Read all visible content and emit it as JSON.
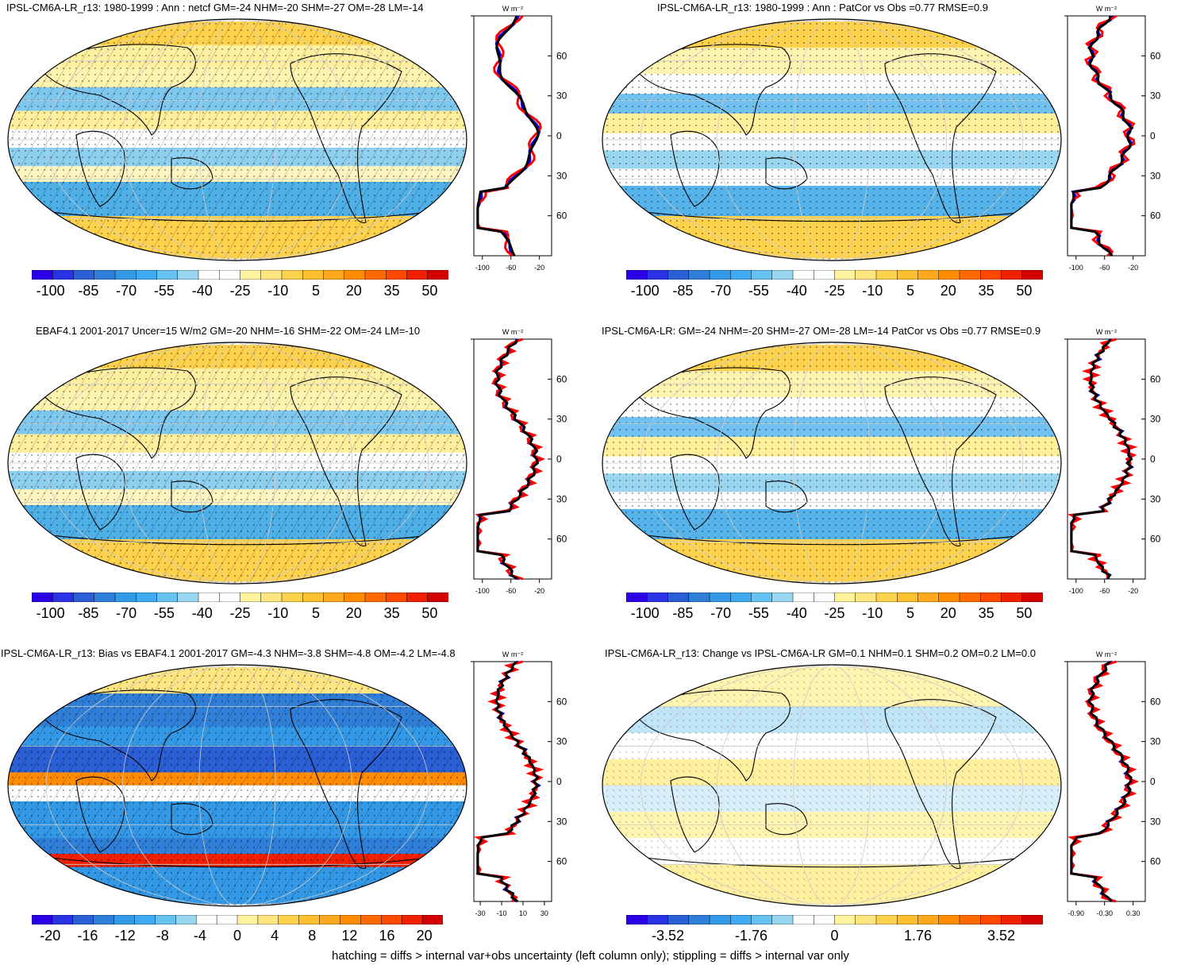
{
  "footnote": "hatching = diffs > internal var+obs uncertainty (left column only); stippling = diffs > internal var only",
  "zonal_unit": "W m⁻²",
  "lat_ticks": [
    "60N",
    "30N",
    "0",
    "30S",
    "60S"
  ],
  "colors": {
    "scale_main": [
      "#2b00e6",
      "#2a32e6",
      "#2a5fd6",
      "#2f7fd9",
      "#3399e6",
      "#40aaf0",
      "#66c2f0",
      "#99d6f0",
      "#ffffff",
      "#ffffff",
      "#fff3a0",
      "#ffe680",
      "#ffd24d",
      "#ffc030",
      "#ffaa1e",
      "#ff8c00",
      "#ff6a00",
      "#ff4800",
      "#f02000",
      "#d40000"
    ],
    "model": "#000000",
    "obs": "#ff0000",
    "ref": "#0000ff"
  },
  "panels": [
    {
      "id": "model-netcf",
      "title": "IPSL-CM6A-LR_r13: 1980-1999 : Ann : netcf GM=-24 NHM=-20 SHM=-27 OM=-28 LM=-14",
      "cbar_labels": [
        "-100",
        "-85",
        "-70",
        "-55",
        "-40",
        "-25",
        "-10",
        "5",
        "20",
        "35",
        "50"
      ],
      "zonal_ticks": [
        "-100",
        "-60",
        "-20"
      ],
      "map_style": "A",
      "hatch": true
    },
    {
      "id": "model-patcor",
      "title": "IPSL-CM6A-LR_r13: 1980-1999 : Ann : PatCor vs Obs =0.77 RMSE=0.9",
      "cbar_labels": [
        "-100",
        "-85",
        "-70",
        "-55",
        "-40",
        "-25",
        "-10",
        "5",
        "20",
        "35",
        "50"
      ],
      "zonal_ticks": [
        "-100",
        "-60",
        "-20"
      ],
      "map_style": "B",
      "hatch": false
    },
    {
      "id": "obs-ebaf",
      "title": "EBAF4.1 2001-2017 Uncer=15 W/m2 GM=-20 NHM=-16 SHM=-22 OM=-24 LM=-10",
      "cbar_labels": [
        "-100",
        "-85",
        "-70",
        "-55",
        "-40",
        "-25",
        "-10",
        "5",
        "20",
        "35",
        "50"
      ],
      "zonal_ticks": [
        "-100",
        "-60",
        "-20"
      ],
      "map_style": "A",
      "hatch": true
    },
    {
      "id": "ref-model",
      "title": "IPSL-CM6A-LR: GM=-24 NHM=-20 SHM=-27 OM=-28 LM=-14 PatCor vs Obs =0.77 RMSE=0.9",
      "cbar_labels": [
        "-100",
        "-85",
        "-70",
        "-55",
        "-40",
        "-25",
        "-10",
        "5",
        "20",
        "35",
        "50"
      ],
      "zonal_ticks": [
        "-100",
        "-60",
        "-20"
      ],
      "map_style": "B",
      "hatch": false
    },
    {
      "id": "bias",
      "title": "IPSL-CM6A-LR_r13: Bias vs EBAF4.1 2001-2017 GM=-4.3 NHM=-3.8 SHM=-4.8 OM=-4.2 LM=-4.8",
      "cbar_labels": [
        "-20",
        "-16",
        "-12",
        "-8",
        "-4",
        "0",
        "4",
        "8",
        "12",
        "16",
        "20"
      ],
      "zonal_ticks": [
        "-30",
        "-10",
        "10",
        "30"
      ],
      "map_style": "C",
      "hatch": true
    },
    {
      "id": "change",
      "title": "IPSL-CM6A-LR_r13: Change vs IPSL-CM6A-LR GM=0.1 NHM=0.1 SHM=0.2 OM=0.2 LM=0.0",
      "cbar_labels": [
        "-3.52",
        "-1.76",
        "0",
        "1.76",
        "3.52"
      ],
      "zonal_ticks": [
        "-0.90",
        "-0.30",
        "0.30"
      ],
      "map_style": "D",
      "hatch": false
    }
  ]
}
